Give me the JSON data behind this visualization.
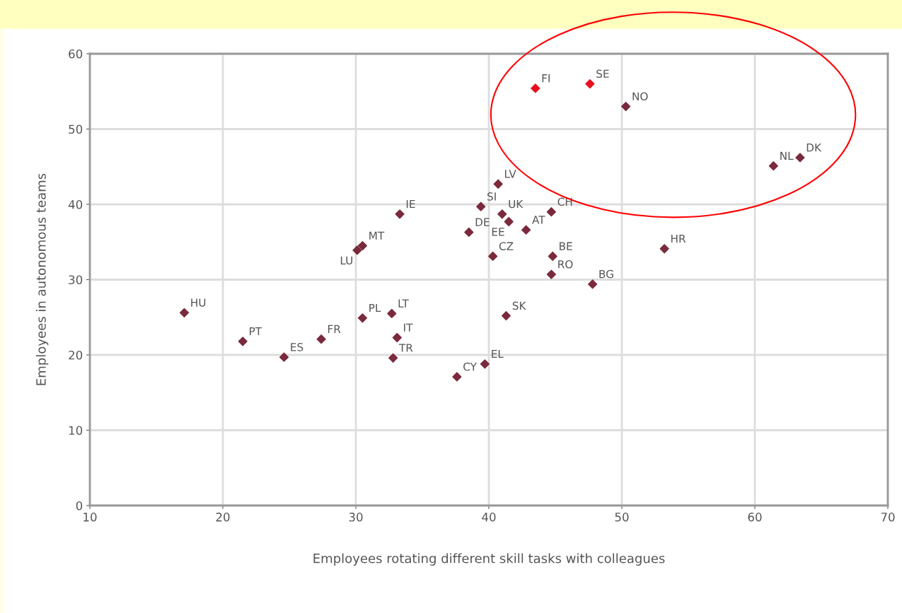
{
  "chart_data": {
    "type": "scatter",
    "xlabel": "Employees rotating different skill tasks with colleagues",
    "ylabel": "Employees in autonomous teams",
    "series": [
      {
        "x": [
          43.5,
          47.6,
          50.3,
          63.4,
          61.4,
          17.1,
          21.5,
          24.6,
          27.4,
          30.5,
          32.7,
          33.1,
          32.8,
          37.6,
          39.7,
          41.3,
          30.5,
          30.1,
          33.3,
          38.5,
          39.4,
          40.7,
          41.0,
          41.5,
          42.8,
          44.7,
          40.3,
          44.8,
          44.7,
          47.8,
          53.2
        ],
        "values": [
          55.4,
          56.0,
          53.0,
          46.2,
          45.1,
          25.6,
          21.8,
          19.7,
          22.1,
          24.9,
          25.5,
          22.3,
          19.6,
          17.1,
          18.8,
          25.2,
          34.5,
          33.9,
          38.7,
          36.3,
          39.7,
          42.7,
          38.7,
          37.7,
          36.6,
          39.0,
          33.1,
          33.1,
          30.7,
          29.4,
          34.1
        ],
        "colors": [
          "#e8101e",
          "#e8101e",
          "#7a2a3c",
          "#7a2a3c",
          "#7a2a3c",
          "#7a2a3c",
          "#7a2a3c",
          "#7a2a3c",
          "#7a2a3c",
          "#7a2a3c",
          "#7a2a3c",
          "#7a2a3c",
          "#7a2a3c",
          "#7a2a3c",
          "#7a2a3c",
          "#7a2a3c",
          "#7a2a3c",
          "#7a2a3c",
          "#7a2a3c",
          "#7a2a3c",
          "#7a2a3c",
          "#7a2a3c",
          "#7a2a3c",
          "#7a2a3c",
          "#7a2a3c",
          "#7a2a3c",
          "#7a2a3c",
          "#7a2a3c",
          "#7a2a3c",
          "#7a2a3c",
          "#7a2a3c"
        ]
      }
    ],
    "annotations": [
      {
        "text": "FI",
        "x": 43.5,
        "y": 55.4
      },
      {
        "text": "SE",
        "x": 47.6,
        "y": 56.0
      },
      {
        "text": "NO",
        "x": 50.3,
        "y": 53.0
      },
      {
        "text": "DK",
        "x": 63.4,
        "y": 46.2
      },
      {
        "text": "NL",
        "x": 61.4,
        "y": 45.1
      },
      {
        "text": "HU",
        "x": 17.1,
        "y": 25.6
      },
      {
        "text": "PT",
        "x": 21.5,
        "y": 21.8
      },
      {
        "text": "ES",
        "x": 24.6,
        "y": 19.7
      },
      {
        "text": "FR",
        "x": 27.4,
        "y": 22.1
      },
      {
        "text": "PL",
        "x": 30.5,
        "y": 24.9
      },
      {
        "text": "LT",
        "x": 32.7,
        "y": 25.5
      },
      {
        "text": "IT",
        "x": 33.1,
        "y": 22.3
      },
      {
        "text": "TR",
        "x": 32.8,
        "y": 19.6
      },
      {
        "text": "CY",
        "x": 37.6,
        "y": 17.1
      },
      {
        "text": "EL",
        "x": 39.7,
        "y": 18.8
      },
      {
        "text": "SK",
        "x": 41.3,
        "y": 25.2
      },
      {
        "text": "MT",
        "x": 30.5,
        "y": 34.5
      },
      {
        "text": "LU",
        "x": 30.1,
        "y": 33.9
      },
      {
        "text": "IE",
        "x": 33.3,
        "y": 38.7
      },
      {
        "text": "DE",
        "x": 38.5,
        "y": 36.3
      },
      {
        "text": "SI",
        "x": 39.4,
        "y": 39.7
      },
      {
        "text": "LV",
        "x": 40.7,
        "y": 42.7
      },
      {
        "text": "UK",
        "x": 41.0,
        "y": 38.7
      },
      {
        "text": "EE",
        "x": 41.5,
        "y": 37.7
      },
      {
        "text": "AT",
        "x": 42.8,
        "y": 36.6
      },
      {
        "text": "CH",
        "x": 44.7,
        "y": 39.0
      },
      {
        "text": "CZ",
        "x": 40.3,
        "y": 33.1
      },
      {
        "text": "BE",
        "x": 44.8,
        "y": 33.1
      },
      {
        "text": "RO",
        "x": 44.7,
        "y": 30.7
      },
      {
        "text": "BG",
        "x": 47.8,
        "y": 29.4
      },
      {
        "text": "HR",
        "x": 53.2,
        "y": 34.1
      }
    ],
    "xlim": [
      10,
      70
    ],
    "xticks": [
      10,
      20,
      30,
      40,
      50,
      60,
      70
    ],
    "ylim": [
      0,
      60
    ],
    "yticks": [
      0,
      10,
      20,
      30,
      40,
      50,
      60
    ],
    "grid": true,
    "marker": "diamond"
  }
}
